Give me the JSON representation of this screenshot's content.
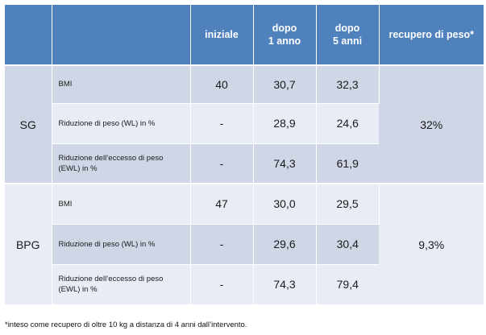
{
  "headers": {
    "blank_a": "",
    "blank_b": "",
    "iniziale": "iniziale",
    "dopo1_l1": "dopo",
    "dopo1_l2": "1 anno",
    "dopo5_l1": "dopo",
    "dopo5_l2": "5 anni",
    "recupero": "recupero di peso*"
  },
  "groups": [
    {
      "name": "SG",
      "recupero": "32%",
      "rows": [
        {
          "label": "BMI",
          "iniziale": "40",
          "dopo1": "30,7",
          "dopo5": "32,3"
        },
        {
          "label": "Riduzione di peso (WL) in %",
          "iniziale": "-",
          "dopo1": "28,9",
          "dopo5": "24,6"
        },
        {
          "label_l1": "Riduzione dell’eccesso di peso",
          "label_l2": "(EWL) in %",
          "iniziale": "-",
          "dopo1": "74,3",
          "dopo5": "61,9"
        }
      ]
    },
    {
      "name": "BPG",
      "recupero": "9,3%",
      "rows": [
        {
          "label": "BMI",
          "iniziale": "47",
          "dopo1": "30,0",
          "dopo5": "29,5"
        },
        {
          "label": "Riduzione di peso (WL) in %",
          "iniziale": "-",
          "dopo1": "29,6",
          "dopo5": "30,4"
        },
        {
          "label_l1": "Riduzione dell’eccesso di peso",
          "label_l2": "(EWL) in %",
          "iniziale": "-",
          "dopo1": "74,3",
          "dopo5": "79,4"
        }
      ]
    }
  ],
  "footnote": "*inteso come recupero di oltre 10 kg a distanza di 4 anni dall’intervento.",
  "colors": {
    "header_blue": "#4f81bd",
    "row_dark": "#cfd6e6",
    "row_light": "#e8ecf4"
  }
}
